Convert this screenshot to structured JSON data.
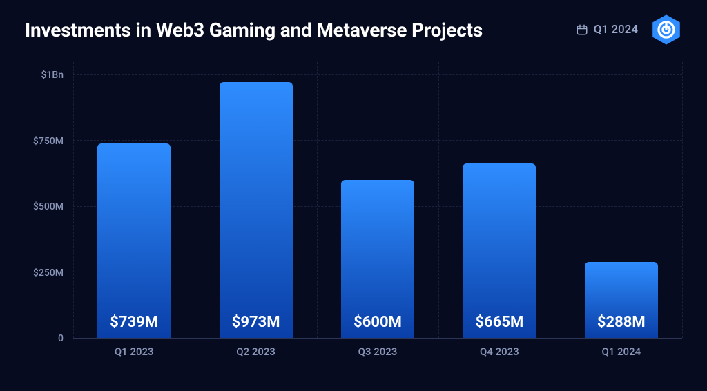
{
  "header": {
    "title": "Investments in Web3 Gaming and Metaverse Projects",
    "period_label": "Q1 2024",
    "period_icon_color": "#9aa8c9",
    "logo_color": "#2f8dff"
  },
  "chart": {
    "type": "bar",
    "background_color": "#060b1f",
    "grid_color": "#2b3556",
    "axis_label_color": "#8a96b8",
    "axis_label_fontsize": 14,
    "bar_label_color": "#ffffff",
    "bar_label_fontsize": 22,
    "bar_gradient_top": "#2f8dff",
    "bar_gradient_bottom": "#0a3fa8",
    "bar_border_radius": 6,
    "bar_width_pct": 12,
    "ymax": 1050,
    "yticks": [
      {
        "value": 0,
        "label": "0"
      },
      {
        "value": 250,
        "label": "$250M"
      },
      {
        "value": 500,
        "label": "$500M"
      },
      {
        "value": 750,
        "label": "$750M"
      },
      {
        "value": 1000,
        "label": "$1Bn"
      }
    ],
    "categories": [
      "Q1 2023",
      "Q2 2023",
      "Q3 2023",
      "Q4 2023",
      "Q1 2024"
    ],
    "values": [
      739,
      973,
      600,
      665,
      288
    ],
    "value_labels": [
      "$739M",
      "$973M",
      "$600M",
      "$665M",
      "$288M"
    ]
  }
}
